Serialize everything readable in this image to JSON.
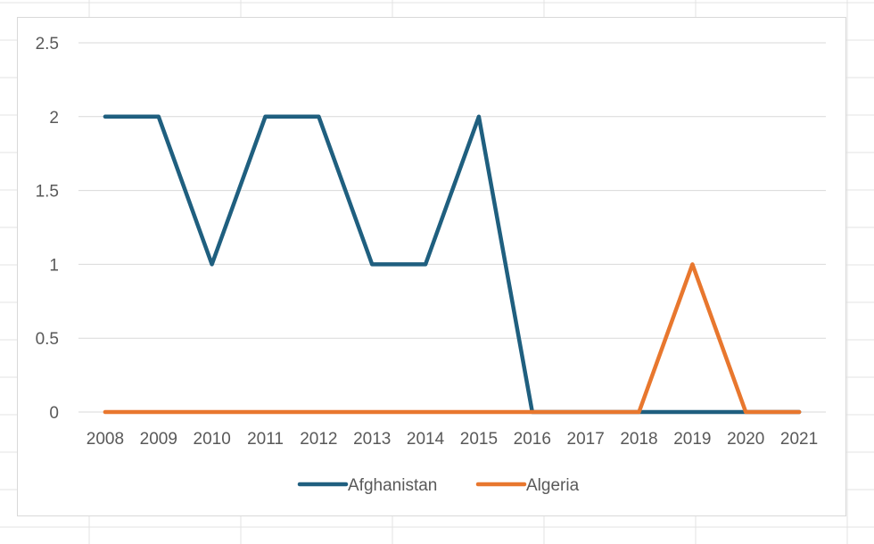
{
  "chart_data": {
    "type": "line",
    "title": "",
    "xlabel": "",
    "ylabel": "",
    "x": [
      "2008",
      "2009",
      "2010",
      "2011",
      "2012",
      "2013",
      "2014",
      "2015",
      "2016",
      "2017",
      "2018",
      "2019",
      "2020",
      "2021"
    ],
    "y_ticks": [
      "0",
      "0.5",
      "1",
      "1.5",
      "2",
      "2.5"
    ],
    "ylim": [
      0,
      2.5
    ],
    "grid": true,
    "legend_position": "bottom",
    "series": [
      {
        "name": "Afghanistan",
        "color": "#1f5f7f",
        "values": [
          2,
          2,
          1,
          2,
          2,
          1,
          1,
          2,
          0,
          0,
          0,
          0,
          0,
          0
        ]
      },
      {
        "name": "Algeria",
        "color": "#e8772e",
        "values": [
          0,
          0,
          0,
          0,
          0,
          0,
          0,
          0,
          0,
          0,
          0,
          1,
          0,
          0
        ]
      }
    ]
  }
}
